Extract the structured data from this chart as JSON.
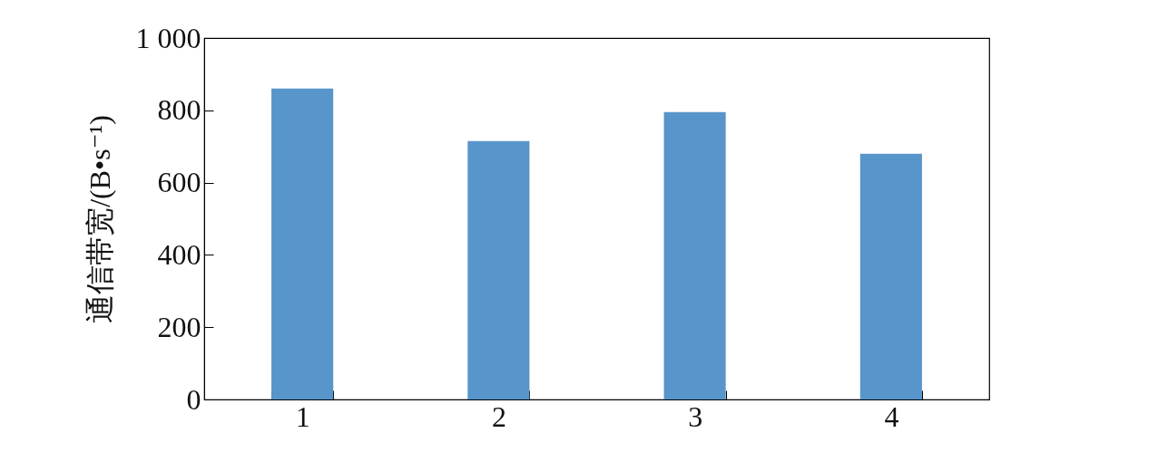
{
  "chart_data": {
    "type": "bar",
    "ylabel": "通信带宽/(B•s⁻¹)",
    "categories": [
      "1",
      "2",
      "3",
      "4"
    ],
    "values": [
      860,
      715,
      795,
      680
    ],
    "color": "#5795cb",
    "ylim": [
      0,
      1000
    ],
    "yticks": [
      0,
      200,
      400,
      600,
      800,
      {
        "value": 1000,
        "label": "1 000"
      }
    ],
    "grid": false
  }
}
